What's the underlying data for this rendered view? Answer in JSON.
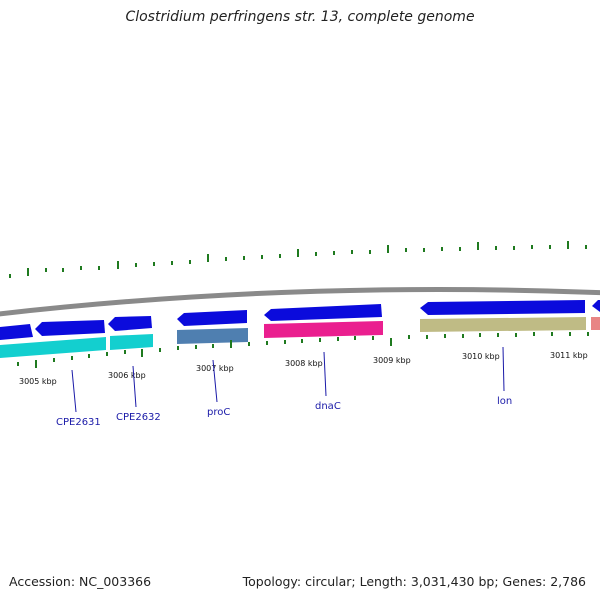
{
  "title": "Clostridium perfringens str. 13, complete genome",
  "accession_label": "Accession: NC_003366",
  "summary_label": "Topology: circular; Length: 3,031,430 bp; Genes: 2,786",
  "colors": {
    "backbone": "#8a8a8a",
    "tick": "#1f7a1f",
    "forward_gene": "#0b0bdc",
    "cyan_feature": "#13cfcf",
    "steel_feature": "#4f7fb0",
    "magenta_feature": "#ea1f8f",
    "olive_feature": "#bfbb85",
    "salmon_feature": "#e88585",
    "label": "#1a1aa8"
  },
  "scale": {
    "unit": "kbp",
    "ticks": [
      "3005 kbp",
      "3006 kbp",
      "3007 kbp",
      "3008 kbp",
      "3009 kbp",
      "3010 kbp",
      "3011 kbp"
    ]
  },
  "genes": [
    "CPE2631",
    "CPE2632",
    "proC",
    "dnaC",
    "lon"
  ]
}
